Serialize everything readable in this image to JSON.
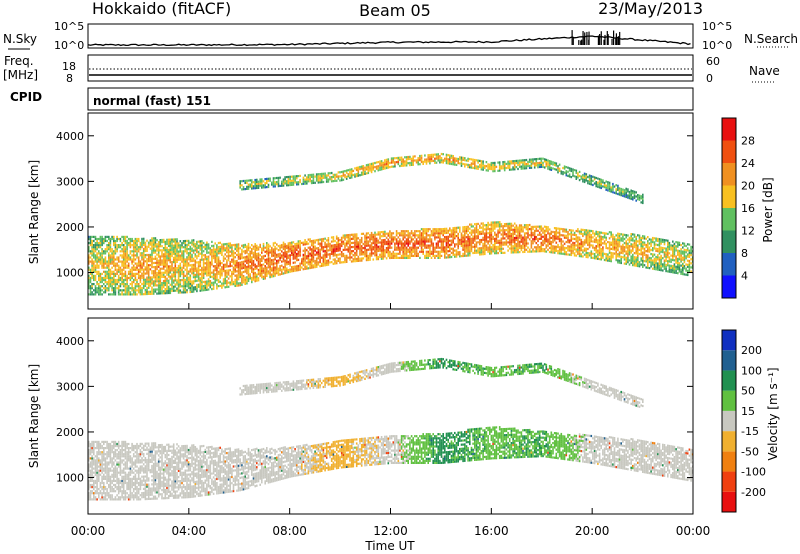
{
  "header": {
    "station": "Hokkaido (fitACF)",
    "beam": "Beam 05",
    "date": "23/May/2013"
  },
  "noise_panel": {
    "left_label": "N.Sky",
    "right_label": "N.Search",
    "left_ticks": [
      "10^5",
      "10^0"
    ],
    "right_ticks": [
      "10^5",
      "10^0"
    ]
  },
  "freq_panel": {
    "left_label_1": "Freq.",
    "left_label_2": "[MHz]",
    "right_label": "Nave",
    "left_ticks": [
      "18",
      "8"
    ],
    "right_ticks": [
      "60",
      "0"
    ]
  },
  "cpid_panel": {
    "label": "CPID",
    "mode_text": "normal (fast) 151"
  },
  "time_axis": {
    "title": "Time UT",
    "ticks": [
      "00:00",
      "04:00",
      "08:00",
      "12:00",
      "16:00",
      "20:00",
      "00:00"
    ]
  },
  "power_panel": {
    "ylabel": "Slant Range [km]",
    "yticks": [
      "1000",
      "2000",
      "3000",
      "4000"
    ],
    "colorbar_label": "Power [dB]",
    "colorbar_ticks": [
      "4",
      "8",
      "12",
      "16",
      "20",
      "24",
      "28"
    ],
    "colorbar_colors": [
      "#1010ff",
      "#2060c0",
      "#309060",
      "#60c060",
      "#f8c020",
      "#f09020",
      "#f05010",
      "#e81010"
    ]
  },
  "velocity_panel": {
    "ylabel": "Slant Range [km]",
    "yticks": [
      "1000",
      "2000",
      "3000",
      "4000"
    ],
    "colorbar_label": "Velocity [m s⁻¹]",
    "colorbar_ticks": [
      "-200",
      "-100",
      "-50",
      "-15",
      "15",
      "50",
      "100",
      "200"
    ],
    "colorbar_colors": [
      "#e81010",
      "#f04010",
      "#f08010",
      "#f0b030",
      "#c8c8c0",
      "#60c040",
      "#209050",
      "#206090",
      "#1030c0"
    ]
  },
  "chart_data": [
    {
      "type": "line",
      "title": "N.Sky / N.Search",
      "x": [
        "00:00",
        "04:00",
        "08:00",
        "12:00",
        "16:00",
        "20:00",
        "24:00"
      ],
      "series": [
        {
          "name": "N.Sky",
          "values": [
            0.3,
            0.3,
            0.4,
            0.9,
            1.0,
            2.3,
            0.5
          ]
        }
      ],
      "ylim": [
        0,
        5
      ]
    },
    {
      "type": "heatmap",
      "title": "Power [dB]",
      "xlabel": "Time UT",
      "ylabel": "Slant Range [km]",
      "xlim_hours": [
        0,
        24
      ],
      "ylim": [
        200,
        4500
      ],
      "color_scale": [
        4,
        28
      ],
      "x": [
        0,
        2,
        4,
        6,
        8,
        10,
        12,
        14,
        16,
        18,
        20,
        22,
        24
      ],
      "bands": [
        {
          "name": "near-range",
          "start_range_km": [
            500,
            500,
            550,
            700,
            1000,
            1200,
            1300,
            1300,
            1400,
            1450,
            1300,
            1100,
            900
          ],
          "end_range_km": [
            1800,
            1750,
            1700,
            1600,
            1650,
            1800,
            1900,
            1950,
            2100,
            2000,
            1900,
            1800,
            1600
          ],
          "peak_power_db": [
            20,
            24,
            22,
            26,
            28,
            28,
            28,
            28,
            26,
            28,
            24,
            22,
            20
          ]
        },
        {
          "name": "far-range",
          "start_range_km": [
            null,
            null,
            null,
            2800,
            2900,
            3000,
            3300,
            3400,
            3200,
            3300,
            2900,
            2500,
            null
          ],
          "end_range_km": [
            null,
            null,
            null,
            3000,
            3100,
            3200,
            3500,
            3600,
            3400,
            3500,
            3100,
            2700,
            null
          ],
          "peak_power_db": [
            null,
            null,
            null,
            18,
            20,
            22,
            24,
            24,
            22,
            20,
            18,
            16,
            null
          ]
        }
      ]
    },
    {
      "type": "heatmap",
      "title": "Velocity [m s⁻¹]",
      "xlabel": "Time UT",
      "ylabel": "Slant Range [km]",
      "xlim_hours": [
        0,
        24
      ],
      "ylim": [
        200,
        4500
      ],
      "color_scale": [
        -200,
        200
      ],
      "x": [
        0,
        2,
        4,
        6,
        8,
        10,
        12,
        14,
        16,
        18,
        20,
        22,
        24
      ],
      "dominant_velocity_ms": [
        0,
        0,
        0,
        0,
        0,
        -30,
        0,
        60,
        40,
        50,
        0,
        0,
        0
      ]
    }
  ]
}
